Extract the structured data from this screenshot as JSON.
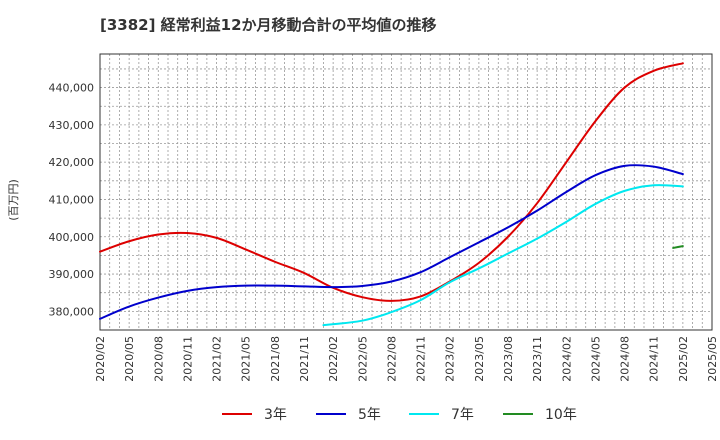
{
  "chart_data": {
    "type": "line",
    "title": "[3382]  経常利益12か月移動合計の平均値の推移",
    "xlabel": "",
    "ylabel": "(百万円)",
    "x_ticks": [
      "2020/02",
      "2020/05",
      "2020/08",
      "2020/11",
      "2021/02",
      "2021/05",
      "2021/08",
      "2021/11",
      "2022/02",
      "2022/05",
      "2022/08",
      "2022/11",
      "2023/02",
      "2023/05",
      "2023/08",
      "2023/11",
      "2024/02",
      "2024/05",
      "2024/08",
      "2024/11",
      "2025/02",
      "2025/05"
    ],
    "y_ticks": [
      380000,
      390000,
      400000,
      410000,
      420000,
      430000,
      440000
    ],
    "y_tick_labels": [
      "380,000",
      "390,000",
      "400,000",
      "410,000",
      "420,000",
      "430,000",
      "440,000"
    ],
    "ylim": [
      375000,
      449000
    ],
    "grid": true,
    "legend_position": "bottom",
    "series": [
      {
        "name": "3年",
        "color": "#dd0000",
        "points": [
          [
            "2020/02",
            396000
          ],
          [
            "2020/05",
            398800
          ],
          [
            "2020/08",
            400600
          ],
          [
            "2020/11",
            401000
          ],
          [
            "2021/02",
            399700
          ],
          [
            "2021/05",
            396600
          ],
          [
            "2021/08",
            393300
          ],
          [
            "2021/11",
            390300
          ],
          [
            "2022/02",
            386300
          ],
          [
            "2022/05",
            383800
          ],
          [
            "2022/08",
            382800
          ],
          [
            "2022/11",
            384000
          ],
          [
            "2023/02",
            388000
          ],
          [
            "2023/05",
            393000
          ],
          [
            "2023/08",
            400000
          ],
          [
            "2023/11",
            409000
          ],
          [
            "2024/02",
            420000
          ],
          [
            "2024/05",
            431000
          ],
          [
            "2024/08",
            440000
          ],
          [
            "2024/11",
            444500
          ],
          [
            "2025/02",
            446500
          ]
        ]
      },
      {
        "name": "5年",
        "color": "#0000cc",
        "points": [
          [
            "2020/02",
            378000
          ],
          [
            "2020/05",
            381300
          ],
          [
            "2020/08",
            383700
          ],
          [
            "2020/11",
            385500
          ],
          [
            "2021/02",
            386500
          ],
          [
            "2021/05",
            386900
          ],
          [
            "2021/08",
            386900
          ],
          [
            "2021/11",
            386700
          ],
          [
            "2022/02",
            386500
          ],
          [
            "2022/05",
            386800
          ],
          [
            "2022/08",
            388000
          ],
          [
            "2022/11",
            390500
          ],
          [
            "2023/02",
            394500
          ],
          [
            "2023/05",
            398500
          ],
          [
            "2023/08",
            402500
          ],
          [
            "2023/11",
            407000
          ],
          [
            "2024/02",
            412000
          ],
          [
            "2024/05",
            416500
          ],
          [
            "2024/08",
            419000
          ],
          [
            "2024/11",
            418800
          ],
          [
            "2025/02",
            416800
          ]
        ]
      },
      {
        "name": "7年",
        "color": "#00e8f0",
        "points": [
          [
            "2022/01",
            376300
          ],
          [
            "2022/05",
            377500
          ],
          [
            "2022/08",
            379800
          ],
          [
            "2022/11",
            383000
          ],
          [
            "2023/02",
            387800
          ],
          [
            "2023/05",
            391500
          ],
          [
            "2023/08",
            395500
          ],
          [
            "2023/11",
            399500
          ],
          [
            "2024/02",
            404000
          ],
          [
            "2024/05",
            408800
          ],
          [
            "2024/08",
            412300
          ],
          [
            "2024/11",
            413800
          ],
          [
            "2025/02",
            413500
          ]
        ]
      },
      {
        "name": "10年",
        "color": "#228b22",
        "points": [
          [
            "2025/01",
            397000
          ],
          [
            "2025/02",
            397500
          ]
        ]
      }
    ]
  }
}
